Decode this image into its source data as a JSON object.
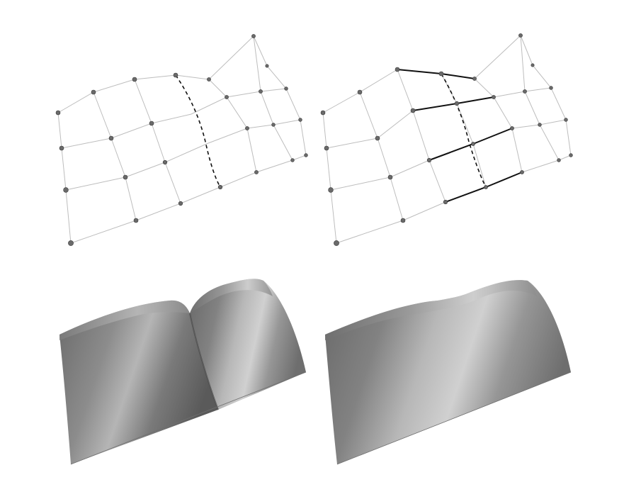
{
  "figure": {
    "panels": [
      {
        "id": "mesh-before",
        "kind": "control-mesh",
        "dashed_knot_line": true,
        "highlighted_edges": false
      },
      {
        "id": "mesh-after",
        "kind": "control-mesh",
        "dashed_knot_line": true,
        "highlighted_edges": true
      },
      {
        "id": "surface-before",
        "kind": "shaded-surface",
        "visible_crease": true
      },
      {
        "id": "surface-after",
        "kind": "shaded-surface",
        "visible_crease": false
      }
    ],
    "colors": {
      "background": "#ffffff",
      "mesh_lines": "#bdbdbd",
      "highlight_lines": "#111111",
      "control_points": "#6a6a6a",
      "surface_dark": "#5a5a5a",
      "surface_light": "#d6d6d6"
    }
  }
}
